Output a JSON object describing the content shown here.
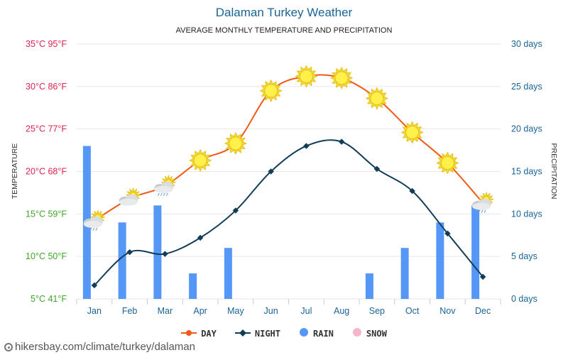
{
  "title": "Dalaman Turkey Weather",
  "subtitle": "AVERAGE MONTHLY TEMPERATURE AND PRECIPITATION",
  "watermark": "hikersbay.com/climate/turkey/dalaman",
  "colors": {
    "title": "#1a6496",
    "day": "#f05a14",
    "night": "#123d58",
    "rain": "#5597f7",
    "snow": "#f7b6c8",
    "grid": "#e6e6e6",
    "ylabel_red": "#e0234e",
    "ylabel_green": "#3ea52a",
    "right_axis": "#1a6496"
  },
  "legend": [
    {
      "name": "DAY",
      "color": "#f05a14",
      "symbol": "line-dot"
    },
    {
      "name": "NIGHT",
      "color": "#123d58",
      "symbol": "line-diamond"
    },
    {
      "name": "RAIN",
      "color": "#5597f7",
      "symbol": "dot"
    },
    {
      "name": "SNOW",
      "color": "#f7b6c8",
      "symbol": "dot"
    }
  ],
  "chart_data": {
    "type": "line",
    "title": "Dalaman Turkey Weather",
    "subtitle": "AVERAGE MONTHLY TEMPERATURE AND PRECIPITATION",
    "categories": [
      "Jan",
      "Feb",
      "Mar",
      "Apr",
      "May",
      "Jun",
      "Jul",
      "Aug",
      "Sep",
      "Oct",
      "Nov",
      "Dec"
    ],
    "y_left": {
      "label": "TEMPERATURE",
      "range": [
        5,
        35
      ],
      "ticks": [
        "5°C 41°F",
        "10°C 50°F",
        "15°C 59°F",
        "20°C 68°F",
        "25°C 77°F",
        "30°C 86°F",
        "35°C 95°F"
      ]
    },
    "y_right": {
      "label": "PRECIPITATION",
      "range": [
        0,
        30
      ],
      "ticks": [
        "0 days",
        "5 days",
        "10 days",
        "15 days",
        "20 days",
        "25 days",
        "30 days"
      ]
    },
    "series": [
      {
        "name": "DAY",
        "type": "line",
        "axis": "left",
        "values": [
          14.2,
          16.8,
          18.3,
          21.3,
          23.3,
          29.5,
          31.2,
          31.0,
          28.6,
          24.6,
          21.0,
          16.3
        ]
      },
      {
        "name": "NIGHT",
        "type": "line",
        "axis": "left",
        "values": [
          6.6,
          10.5,
          10.3,
          12.2,
          15.4,
          20.0,
          23.0,
          23.5,
          20.3,
          17.7,
          12.7,
          7.6
        ]
      },
      {
        "name": "RAIN",
        "type": "bar",
        "axis": "right",
        "values": [
          18,
          9,
          11,
          3,
          6,
          0,
          0,
          0,
          3,
          6,
          9,
          11
        ]
      },
      {
        "name": "SNOW",
        "type": "bar",
        "axis": "right",
        "values": [
          0,
          0,
          0,
          0,
          0,
          0,
          0,
          0,
          0,
          0,
          0,
          0
        ]
      }
    ],
    "weather_icons": [
      "sun-cloud-rain-icon",
      "sun-cloud-icon",
      "sun-cloud-rain-icon",
      "sun-icon",
      "sun-icon",
      "sun-icon",
      "sun-icon",
      "sun-icon",
      "sun-icon",
      "sun-icon",
      "sun-icon",
      "sun-cloud-rain-icon"
    ],
    "grid": true,
    "legend_position": "bottom"
  }
}
